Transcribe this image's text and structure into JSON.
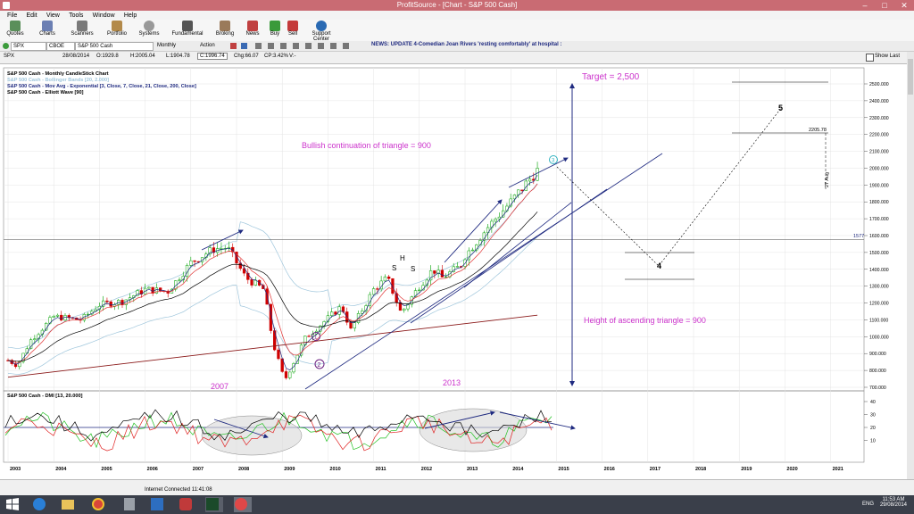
{
  "window": {
    "title": "ProfitSource - [Chart - S&P 500 Cash]"
  },
  "menu": [
    "File",
    "Edit",
    "View",
    "Tools",
    "Window",
    "Help"
  ],
  "toolbar": [
    "Quotes",
    "Charts",
    "Scanners",
    "Portfolio",
    "Systems",
    "Fundamental",
    "Broking",
    "News",
    "Buy",
    "Sell",
    "Support Center"
  ],
  "symbol_bar": {
    "symbol": "SPX",
    "exchange": "CBOE",
    "name": "S&P 500 Cash",
    "period": "Monthly",
    "action": "Action",
    "news": "NEWS: UPDATE 4-Comedian Joan Rivers 'resting comfortably' at hospital :"
  },
  "quote_bar": {
    "sym": "SPX",
    "date": "28/08/2014",
    "open": "O:1929.8",
    "high": "H:2005.04",
    "low": "L:1904.78",
    "close": "C:1996.74",
    "chg": "Chg:66.07",
    "cp": "CP:3.42%",
    "v": "V:-",
    "show_last": "Show Last"
  },
  "legend": [
    {
      "text": "S&P 500 Cash - Monthly CandleStick Chart",
      "color": "#000000"
    },
    {
      "text": "S&P 500 Cash - Bollinger Bands [20, 2.000]",
      "color": "#9fc6dc"
    },
    {
      "text": "S&P 500 Cash - Mov Avg - Exponential   [3, Close, 7, Close, 21, Close, 200, Close]",
      "color": "#1f2a80"
    },
    {
      "text": "S&P 500 Cash - Elliott Wave [90]",
      "color": "#000000"
    }
  ],
  "annotations": {
    "target": "Target = 2,500",
    "bullish": "Bullish continuation of triangle = 900",
    "height": "Height of ascending triangle = 900",
    "h": "H",
    "s1": "S",
    "s2": "S",
    "y2007": "2007",
    "y2013": "2013",
    "wave1": "1",
    "wave2": "2",
    "wave3": "3",
    "wave4": "4",
    "wave5": "5",
    "price_2205": "2205.78",
    "date_label": "27 Aug",
    "level_1577": "1577"
  },
  "dmi_legend": "S&P 500 Cash - DMI [13, 20.000]",
  "price_axis": [
    "2500.000",
    "2400.000",
    "2300.000",
    "2200.000",
    "2100.000",
    "2000.000",
    "1900.000",
    "1800.000",
    "1700.000",
    "1600.000",
    "1500.000",
    "1400.000",
    "1300.000",
    "1200.000",
    "1100.000",
    "1000.000",
    "900.000",
    "800.000",
    "700.000"
  ],
  "dmi_axis": [
    "40",
    "30",
    "20",
    "10"
  ],
  "x_axis": [
    "2003",
    "2004",
    "2005",
    "2006",
    "2007",
    "2008",
    "2009",
    "2010",
    "2011",
    "2012",
    "2013",
    "2014",
    "2015",
    "2016",
    "2017",
    "2018",
    "2019",
    "2020",
    "2021"
  ],
  "status": {
    "connection": "Internet Connected 11:41:08"
  },
  "taskbar": {
    "time": "11:53 AM",
    "date": "29/08/2014",
    "lang": "ENG"
  },
  "colors": {
    "titlebar": "#c96b73",
    "annotation": "#cc33cc",
    "arrow": "#1f2a80",
    "bull": "#00a000",
    "bear": "#d00000"
  }
}
